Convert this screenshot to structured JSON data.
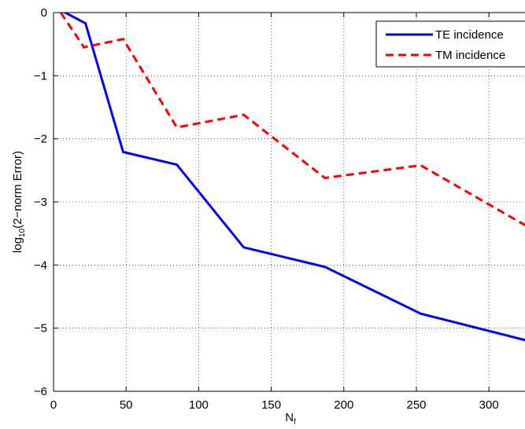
{
  "chart_data": {
    "type": "line",
    "title": "",
    "xlabel": {
      "main": "N",
      "sub": "f"
    },
    "ylabel": {
      "prefix": "log",
      "sub": "10",
      "suffix": "(2−norm Error)"
    },
    "xlim": [
      0,
      325
    ],
    "ylim": [
      -6,
      0
    ],
    "xticks": [
      0,
      50,
      100,
      150,
      200,
      250,
      300
    ],
    "xtick_labels": [
      "0",
      "50",
      "100",
      "150",
      "200",
      "250",
      "300"
    ],
    "yticks": [
      -6,
      -5,
      -4,
      -3,
      -2,
      -1,
      0
    ],
    "ytick_labels": [
      "−6",
      "−5",
      "−4",
      "−3",
      "−2",
      "−1",
      "0"
    ],
    "grid": true,
    "legend_position": "top-right",
    "series": [
      {
        "name": "TE incidence",
        "color": "#0000ff",
        "style": "solid",
        "x": [
          5,
          8,
          22,
          48,
          85,
          131,
          187,
          253,
          325
        ],
        "y": [
          0.4,
          0,
          -0.17,
          -2.21,
          -2.41,
          -3.72,
          -4.03,
          -4.77,
          -5.19
        ]
      },
      {
        "name": "TM incidence",
        "color": "#ff0000",
        "style": "dashed",
        "x": [
          5,
          21,
          48,
          85,
          131,
          187,
          253,
          325
        ],
        "y": [
          0,
          -0.55,
          -0.42,
          -1.82,
          -1.62,
          -2.62,
          -2.42,
          -3.37
        ]
      }
    ]
  }
}
